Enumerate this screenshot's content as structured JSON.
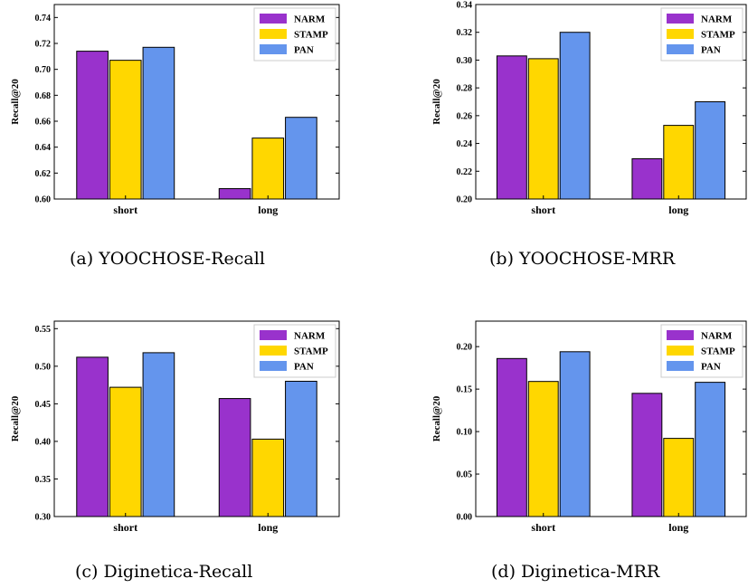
{
  "series_colors": {
    "NARM": "#9932CC",
    "STAMP": "#FFD700",
    "PAN": "#6495ED"
  },
  "chart_data": [
    {
      "type": "bar",
      "caption": "(a) YOOCHOSE-Recall",
      "categories": [
        "short",
        "long"
      ],
      "series": [
        {
          "name": "NARM",
          "values": [
            0.714,
            0.608
          ]
        },
        {
          "name": "STAMP",
          "values": [
            0.707,
            0.647
          ]
        },
        {
          "name": "PAN",
          "values": [
            0.717,
            0.663
          ]
        }
      ],
      "ylabel": "Recall@20",
      "ylim": [
        0.6,
        0.75
      ],
      "yticks": [
        "0.60",
        "0.62",
        "0.64",
        "0.66",
        "0.68",
        "0.70",
        "0.72",
        "0.74"
      ],
      "legend": "top-right"
    },
    {
      "type": "bar",
      "caption": "(b) YOOCHOSE-MRR",
      "categories": [
        "short",
        "long"
      ],
      "series": [
        {
          "name": "NARM",
          "values": [
            0.303,
            0.229
          ]
        },
        {
          "name": "STAMP",
          "values": [
            0.301,
            0.253
          ]
        },
        {
          "name": "PAN",
          "values": [
            0.32,
            0.27
          ]
        }
      ],
      "ylabel": "Recall@20",
      "ylim": [
        0.2,
        0.34
      ],
      "yticks": [
        "0.20",
        "0.22",
        "0.24",
        "0.26",
        "0.28",
        "0.30",
        "0.32",
        "0.34"
      ],
      "legend": "top-right"
    },
    {
      "type": "bar",
      "caption": "(c) Diginetica-Recall",
      "categories": [
        "short",
        "long"
      ],
      "series": [
        {
          "name": "NARM",
          "values": [
            0.512,
            0.457
          ]
        },
        {
          "name": "STAMP",
          "values": [
            0.472,
            0.403
          ]
        },
        {
          "name": "PAN",
          "values": [
            0.518,
            0.48
          ]
        }
      ],
      "ylabel": "Recall@20",
      "ylim": [
        0.3,
        0.56
      ],
      "yticks": [
        "0.30",
        "0.35",
        "0.40",
        "0.45",
        "0.50",
        "0.55"
      ],
      "legend": "top-right"
    },
    {
      "type": "bar",
      "caption": "(d) Diginetica-MRR",
      "categories": [
        "short",
        "long"
      ],
      "series": [
        {
          "name": "NARM",
          "values": [
            0.186,
            0.145
          ]
        },
        {
          "name": "STAMP",
          "values": [
            0.159,
            0.092
          ]
        },
        {
          "name": "PAN",
          "values": [
            0.194,
            0.158
          ]
        }
      ],
      "ylabel": "Recall@20",
      "ylim": [
        0.0,
        0.23
      ],
      "yticks": [
        "0.00",
        "0.05",
        "0.10",
        "0.15",
        "0.20"
      ],
      "legend": "top-right"
    }
  ]
}
